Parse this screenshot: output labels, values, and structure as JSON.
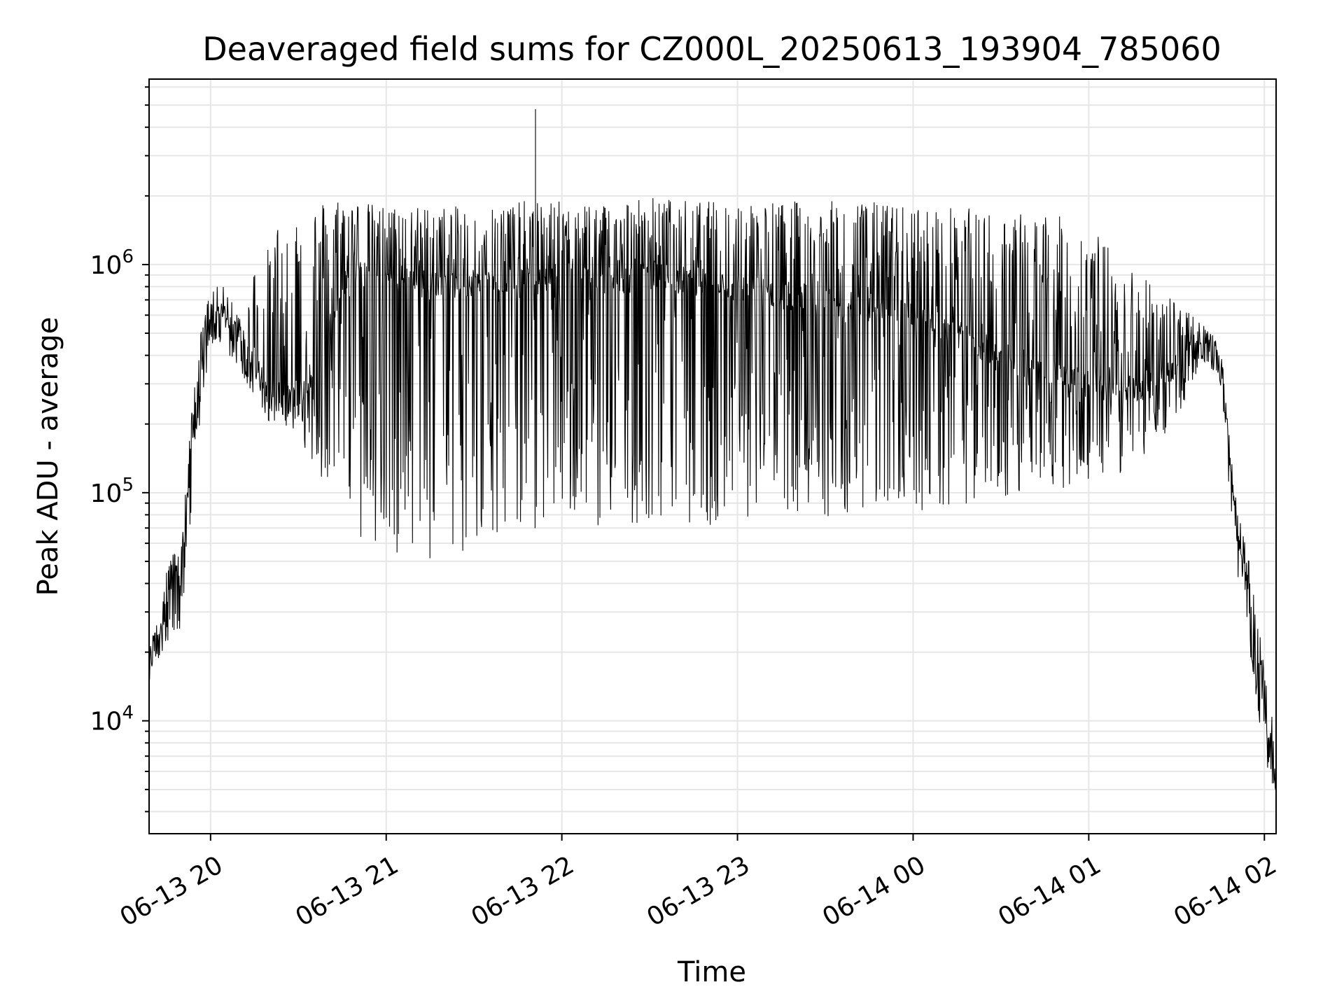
{
  "chart_data": {
    "type": "line",
    "title": "Deaveraged field sums for CZ000L_20250613_193904_785060",
    "xlabel": "Time",
    "ylabel": "Peak ADU - average",
    "yscale": "log",
    "ylim": [
      3200,
      6500000
    ],
    "xlim": [
      "2025-06-13 19:39:04",
      "2025-06-14 02:04:00"
    ],
    "grid": true,
    "x_ticks": [
      "06-13 20",
      "06-13 21",
      "06-13 22",
      "06-13 23",
      "06-14 00",
      "06-14 01",
      "06-14 02"
    ],
    "y_ticks": [
      {
        "base": "10",
        "exp": "4",
        "value": 10000
      },
      {
        "base": "10",
        "exp": "5",
        "value": 100000
      },
      {
        "base": "10",
        "exp": "6",
        "value": 1000000
      }
    ],
    "line_color": "#000000",
    "grid_color": "#e6e6e6",
    "series": [
      {
        "envelope_note_free": true,
        "x": [
          "06-13 19:39",
          "06-13 19:45",
          "06-13 19:50",
          "06-13 19:55",
          "06-13 20:00",
          "06-13 20:05",
          "06-13 20:10",
          "06-13 20:15",
          "06-13 20:20",
          "06-13 20:25",
          "06-13 20:30",
          "06-13 20:35",
          "06-13 20:40",
          "06-13 20:45",
          "06-13 20:50",
          "06-13 21:00",
          "06-13 21:10",
          "06-13 21:20",
          "06-13 21:30",
          "06-13 21:40",
          "06-13 21:50",
          "06-13 22:00",
          "06-13 22:15",
          "06-13 22:30",
          "06-13 22:45",
          "06-13 23:00",
          "06-13 23:15",
          "06-13 23:30",
          "06-13 23:45",
          "06-14 00:00",
          "06-14 00:15",
          "06-14 00:30",
          "06-14 00:45",
          "06-14 01:00",
          "06-14 01:10",
          "06-14 01:20",
          "06-14 01:30",
          "06-14 01:35",
          "06-14 01:40",
          "06-14 01:45",
          "06-14 01:50",
          "06-14 01:55",
          "06-14 02:00",
          "06-14 02:04"
        ],
        "baseline": [
          17000,
          35000,
          45000,
          250000,
          550000,
          600000,
          450000,
          350000,
          300000,
          250000,
          280000,
          300000,
          500000,
          800000,
          900000,
          900000,
          850000,
          800000,
          850000,
          800000,
          850000,
          900000,
          850000,
          900000,
          850000,
          800000,
          750000,
          700000,
          650000,
          600000,
          500000,
          400000,
          350000,
          300000,
          280000,
          300000,
          350000,
          420000,
          450000,
          400000,
          80000,
          30000,
          10000,
          5000
        ],
        "high": [
          20000,
          50000,
          60000,
          400000,
          800000,
          800000,
          600000,
          1000000,
          1200000,
          1900000,
          1900000,
          1900000,
          2000000,
          2000000,
          1900000,
          1800000,
          1800000,
          1800000,
          1800000,
          1900000,
          1900000,
          1900000,
          1900000,
          2000000,
          1900000,
          1900000,
          1900000,
          1900000,
          1900000,
          1800000,
          1800000,
          1700000,
          1700000,
          1500000,
          1100000,
          900000,
          700000,
          600000,
          550000,
          450000,
          100000,
          50000,
          17000,
          8000
        ],
        "low": [
          15000,
          22000,
          25000,
          150000,
          450000,
          420000,
          350000,
          250000,
          200000,
          200000,
          180000,
          130000,
          100000,
          90000,
          55000,
          52000,
          50000,
          48000,
          55000,
          60000,
          65000,
          80000,
          70000,
          75000,
          70000,
          75000,
          80000,
          78000,
          80000,
          82000,
          88000,
          95000,
          100000,
          110000,
          120000,
          150000,
          200000,
          300000,
          380000,
          300000,
          50000,
          20000,
          7000,
          4500
        ]
      }
    ]
  }
}
